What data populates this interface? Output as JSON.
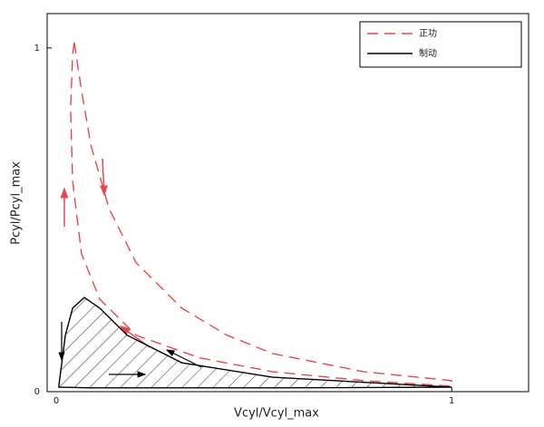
{
  "chart_data": {
    "type": "line",
    "xlabel": "Vcyl/Vcyl_max",
    "ylabel": "Pcyl/Pcyl_max",
    "xlim": [
      0,
      1.19
    ],
    "ylim": [
      0,
      1.1
    ],
    "xticks": [
      0,
      1
    ],
    "yticks": [
      0,
      1
    ],
    "legend": "upper right",
    "series": [
      {
        "name": "正功",
        "color": "#e8484d",
        "style": "dashed",
        "x": [
          0.067,
          0.085,
          0.108,
          0.153,
          0.22,
          0.333,
          0.445,
          0.557,
          0.782,
          1.0,
          1.0,
          0.782,
          0.557,
          0.378,
          0.22,
          0.13,
          0.085,
          0.063,
          0.058,
          0.063
        ],
        "values": [
          1.016,
          0.876,
          0.718,
          0.533,
          0.375,
          0.243,
          0.164,
          0.111,
          0.058,
          0.032,
          0.016,
          0.032,
          0.058,
          0.098,
          0.164,
          0.269,
          0.401,
          0.612,
          0.823,
          0.982
        ]
      },
      {
        "name": "制动",
        "color": "#000000",
        "style": "solid",
        "x": [
          0.029,
          0.045,
          0.063,
          0.092,
          0.13,
          0.198,
          0.333,
          0.557,
          1.0,
          0.557,
          0.108,
          0.029
        ],
        "values": [
          0.018,
          0.164,
          0.243,
          0.274,
          0.243,
          0.164,
          0.084,
          0.042,
          0.013,
          0.011,
          0.011,
          0.013
        ]
      }
    ]
  }
}
